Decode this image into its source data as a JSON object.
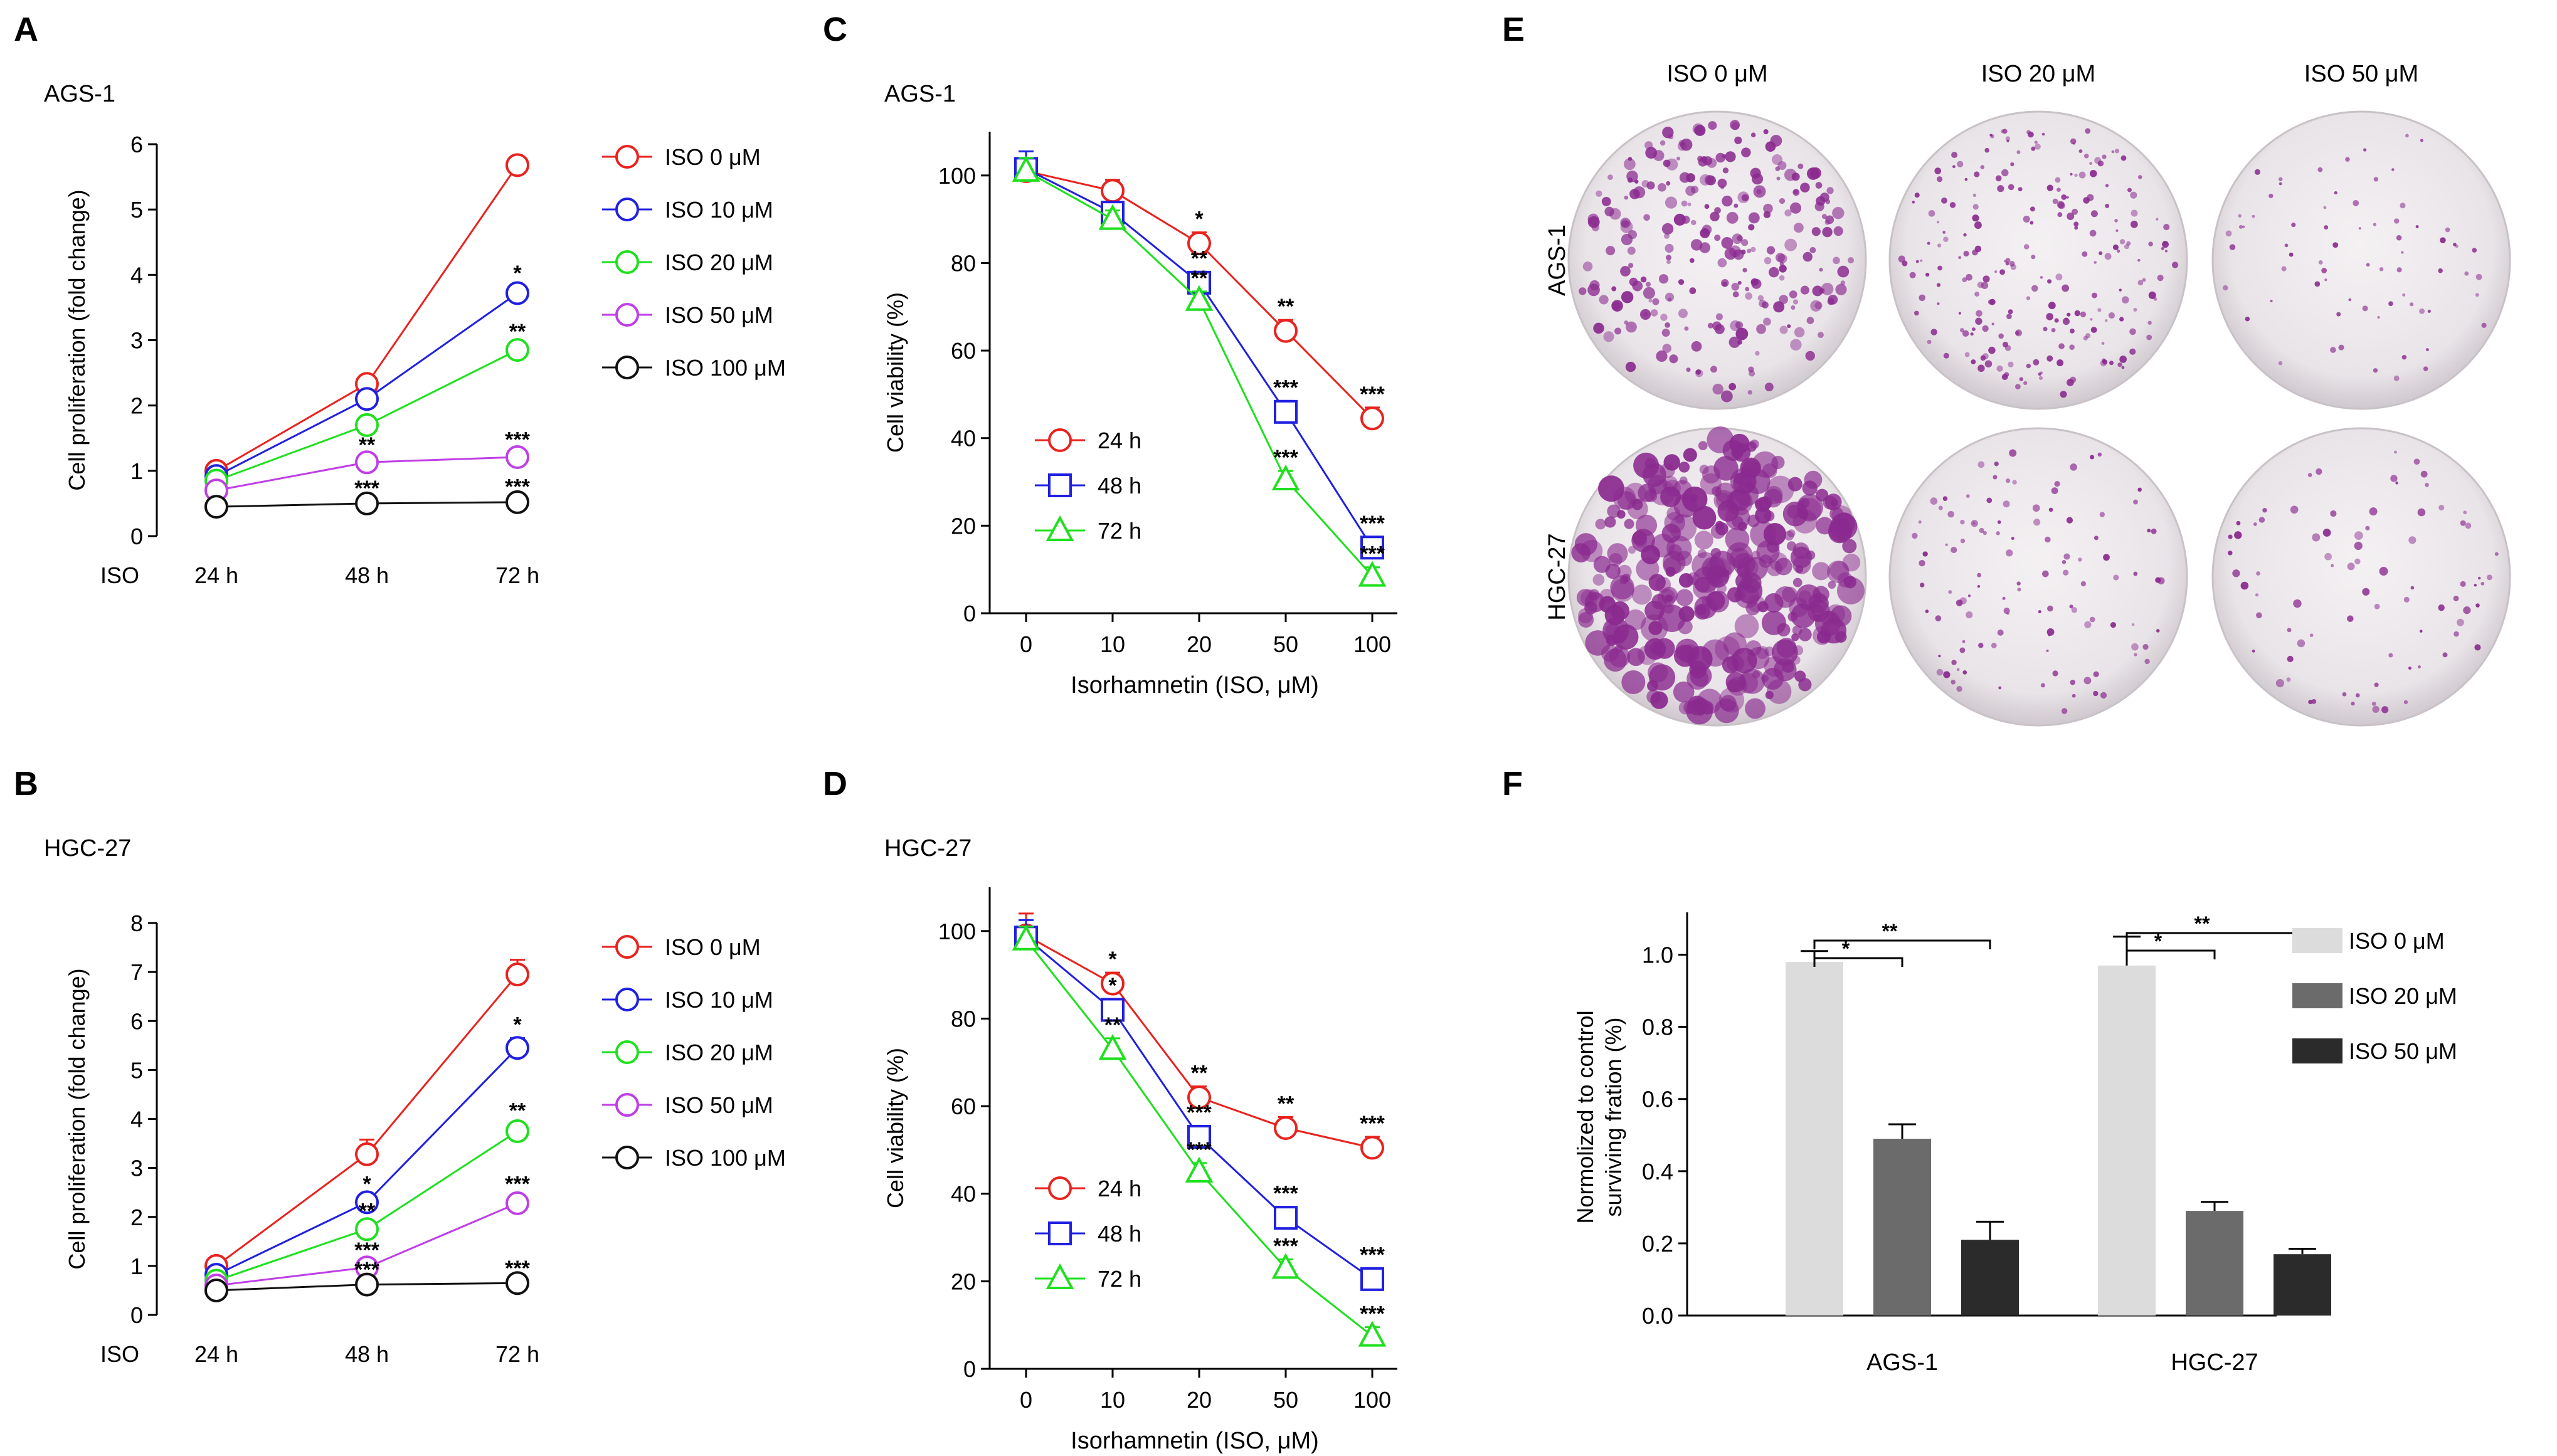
{
  "colors": {
    "red": "#e8231f",
    "blue": "#2020e0",
    "green": "#1fe01f",
    "purple": "#bf3fe6",
    "black": "#111111",
    "bar_light": "#dcdcdc",
    "bar_mid": "#6b6b6b",
    "bar_dark": "#2b2b2b"
  },
  "chart_data": [
    {
      "panel": "A",
      "type": "line",
      "cell_line": "AGS-1",
      "ylabel": "Cell proliferation (fold change)",
      "x_prefix": "ISO",
      "categories": [
        "24 h",
        "48 h",
        "72 h"
      ],
      "ylim": [
        0,
        6
      ],
      "yticks": [
        "0",
        "1",
        "2",
        "3",
        "4",
        "5",
        "6"
      ],
      "series": [
        {
          "name": "ISO 0 μM",
          "color": "red",
          "marker": "circle",
          "values": [
            1.0,
            2.33,
            5.68
          ],
          "errors": [
            0.05,
            0.08,
            0.1
          ],
          "stars": [
            "",
            "",
            ""
          ]
        },
        {
          "name": "ISO 10 μM",
          "color": "blue",
          "marker": "circle",
          "values": [
            0.92,
            2.1,
            3.72
          ],
          "errors": [
            0.05,
            0.08,
            0.1
          ],
          "stars": [
            "",
            "",
            "*"
          ]
        },
        {
          "name": "ISO 20 μM",
          "color": "green",
          "marker": "circle",
          "values": [
            0.85,
            1.7,
            2.85
          ],
          "errors": [
            0.05,
            0.08,
            0.08
          ],
          "stars": [
            "",
            "",
            "**"
          ]
        },
        {
          "name": "ISO 50 μM",
          "color": "purple",
          "marker": "circle",
          "values": [
            0.7,
            1.13,
            1.21
          ],
          "errors": [
            0.05,
            0.06,
            0.06
          ],
          "stars": [
            "",
            "**",
            "***"
          ]
        },
        {
          "name": "ISO 100 μM",
          "color": "black",
          "marker": "circle",
          "values": [
            0.45,
            0.5,
            0.52
          ],
          "errors": [
            0.03,
            0.03,
            0.03
          ],
          "stars": [
            "",
            "***",
            "***"
          ]
        }
      ]
    },
    {
      "panel": "B",
      "type": "line",
      "cell_line": "HGC-27",
      "ylabel": "Cell proliferation (fold change)",
      "x_prefix": "ISO",
      "categories": [
        "24 h",
        "48 h",
        "72 h"
      ],
      "ylim": [
        0,
        8
      ],
      "yticks": [
        "0",
        "1",
        "2",
        "3",
        "4",
        "5",
        "6",
        "7",
        "8"
      ],
      "series": [
        {
          "name": "ISO 0 μM",
          "color": "red",
          "marker": "circle",
          "values": [
            1.0,
            3.28,
            6.95
          ],
          "errors": [
            0.05,
            0.3,
            0.3
          ],
          "stars": [
            "",
            "",
            ""
          ]
        },
        {
          "name": "ISO 10 μM",
          "color": "blue",
          "marker": "circle",
          "values": [
            0.82,
            2.3,
            5.45
          ],
          "errors": [
            0.05,
            0.1,
            0.2
          ],
          "stars": [
            "",
            "*",
            "*"
          ]
        },
        {
          "name": "ISO 20 μM",
          "color": "green",
          "marker": "circle",
          "values": [
            0.7,
            1.75,
            3.75
          ],
          "errors": [
            0.05,
            0.1,
            0.15
          ],
          "stars": [
            "",
            "**",
            "**"
          ]
        },
        {
          "name": "ISO 50 μM",
          "color": "purple",
          "marker": "circle",
          "values": [
            0.6,
            0.97,
            2.28
          ],
          "errors": [
            0.05,
            0.08,
            0.12
          ],
          "stars": [
            "",
            "***",
            "***"
          ]
        },
        {
          "name": "ISO 100 μM",
          "color": "black",
          "marker": "circle",
          "values": [
            0.5,
            0.62,
            0.65
          ],
          "errors": [
            0.03,
            0.03,
            0.03
          ],
          "stars": [
            "",
            "***",
            "***"
          ]
        }
      ]
    },
    {
      "panel": "C",
      "type": "line",
      "cell_line": "AGS-1",
      "ylabel": "Cell viability (%)",
      "xlabel": "Isorhamnetin (ISO, μM)",
      "categories": [
        "0",
        "10",
        "20",
        "50",
        "100"
      ],
      "ylim": [
        0,
        110
      ],
      "yticks": [
        "0",
        "20",
        "40",
        "60",
        "80",
        "100"
      ],
      "series": [
        {
          "name": "24 h",
          "color": "red",
          "marker": "circle",
          "values": [
            101,
            96.5,
            84.5,
            64.5,
            44.5
          ],
          "errors": [
            3,
            2.5,
            2.5,
            2.5,
            2.5
          ],
          "stars": [
            "",
            "",
            "*",
            "**",
            "***"
          ]
        },
        {
          "name": "48 h",
          "color": "blue",
          "marker": "square",
          "values": [
            101.5,
            91.5,
            75.5,
            46,
            15
          ],
          "errors": [
            4,
            2,
            2.5,
            2.5,
            2.5
          ],
          "stars": [
            "",
            "",
            "**",
            "***",
            "***"
          ]
        },
        {
          "name": "72 h",
          "color": "green",
          "marker": "triangle",
          "values": [
            101,
            90,
            71.5,
            30.5,
            8.5
          ],
          "errors": [
            3,
            2,
            2,
            2,
            2
          ],
          "stars": [
            "",
            "",
            "**",
            "***",
            "***"
          ]
        }
      ]
    },
    {
      "panel": "D",
      "type": "line",
      "cell_line": "HGC-27",
      "ylabel": "Cell viability (%)",
      "xlabel": "Isorhamnetin (ISO, μM)",
      "categories": [
        "0",
        "10",
        "20",
        "50",
        "100"
      ],
      "ylim": [
        0,
        110
      ],
      "yticks": [
        "0",
        "20",
        "40",
        "60",
        "80",
        "100"
      ],
      "series": [
        {
          "name": "24 h",
          "color": "red",
          "marker": "circle",
          "values": [
            99,
            88,
            62,
            55,
            50.5
          ],
          "errors": [
            5,
            2.5,
            2.5,
            2.5,
            2.5
          ],
          "stars": [
            "",
            "*",
            "**",
            "**",
            "***"
          ]
        },
        {
          "name": "48 h",
          "color": "blue",
          "marker": "square",
          "values": [
            98.5,
            82,
            53,
            34.5,
            20.5
          ],
          "errors": [
            4,
            2.5,
            2.5,
            2.5,
            2.5
          ],
          "stars": [
            "",
            "*",
            "***",
            "***",
            "***"
          ]
        },
        {
          "name": "72 h",
          "color": "green",
          "marker": "triangle",
          "values": [
            98,
            73,
            45,
            23,
            7.5
          ],
          "errors": [
            3,
            2.5,
            2,
            2,
            2
          ],
          "stars": [
            "",
            "**",
            "***",
            "***",
            "***"
          ]
        }
      ]
    },
    {
      "panel": "F",
      "type": "bar",
      "ylabel": [
        "Normolized to control",
        "surviving fration (%)"
      ],
      "categories": [
        "AGS-1",
        "HGC-27"
      ],
      "ylim": [
        0,
        1.1
      ],
      "yticks": [
        "0.0",
        "0.2",
        "0.4",
        "0.6",
        "0.8",
        "1.0"
      ],
      "series": [
        {
          "name": "ISO 0 μM",
          "color": "bar_light",
          "values": [
            0.98,
            0.97
          ],
          "errors": [
            0.03,
            0.08
          ]
        },
        {
          "name": "ISO 20 μM",
          "color": "bar_mid",
          "values": [
            0.49,
            0.29
          ],
          "errors": [
            0.04,
            0.025
          ]
        },
        {
          "name": "ISO 50 μM",
          "color": "bar_dark",
          "values": [
            0.21,
            0.17
          ],
          "errors": [
            0.05,
            0.015
          ]
        }
      ],
      "comparisons": [
        "*",
        "**"
      ]
    }
  ],
  "colony_panel": {
    "panel": "E",
    "columns": [
      "ISO 0 μM",
      "ISO 20 μM",
      "ISO 50 μM"
    ],
    "rows": [
      "AGS-1",
      "HGC-27"
    ]
  }
}
